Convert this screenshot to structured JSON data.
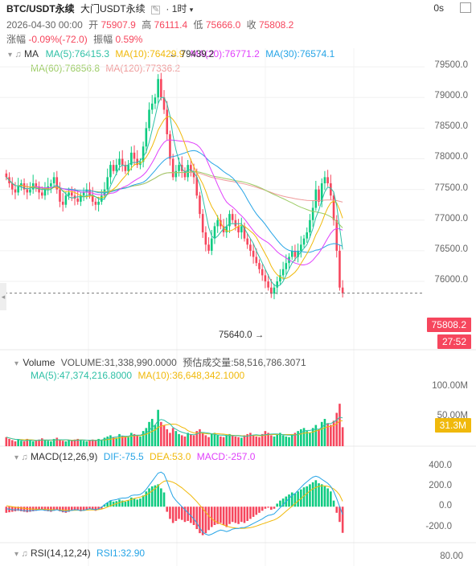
{
  "header": {
    "symbol": "BTC/USDT永续",
    "exchange": "大门USDT永续",
    "settings_icon": "edit-icon",
    "interval": "1时",
    "timer": "0s",
    "date": "2026-04-30 00:00",
    "open_label": "开",
    "open": "75907.9",
    "high_label": "高",
    "high": "76111.4",
    "low_label": "低",
    "low": "75666.0",
    "close_label": "收",
    "close": "75808.2",
    "change_label": "涨幅",
    "change": "-0.09%(-72.0)",
    "amp_label": "振幅",
    "amp": "0.59%"
  },
  "ma_legend": {
    "name": "MA",
    "ma5": "MA(5):76415.3",
    "ma10": "MA(10):76429.9",
    "ma20": "MA(20):76771.2",
    "ma30": "MA(30):76574.1",
    "ma60": "MA(60):76856.8",
    "ma120": "MA(120):77336.2"
  },
  "annotations": {
    "high_mark": "← 79439.2",
    "low_mark": "75640.0 →"
  },
  "price_tags": {
    "last": "75808.2",
    "countdown": "27:52"
  },
  "volume_legend": {
    "name": "Volume",
    "volume": "VOLUME:31,338,990.0000",
    "est": "预估成交量:58,516,786.3071",
    "ma5": "MA(5):47,374,216.8000",
    "ma10": "MA(10):36,648,342.1000",
    "tag": "31.3M"
  },
  "macd_legend": {
    "name": "MACD(12,26,9)",
    "dif": "DIF:-75.5",
    "dea": "DEA:53.0",
    "macd": "MACD:-257.0"
  },
  "rsi_legend": {
    "name": "RSI(14,12,24)",
    "rsi1": "RSI1:32.90"
  },
  "colors": {
    "up": "#0ecb81",
    "down": "#f6465d",
    "ma5": "#2fc0a6",
    "ma10": "#f0b90b",
    "ma20": "#e040fb",
    "ma30": "#26a4e6",
    "ma60": "#9ccc65",
    "ma120": "#ef9a9a"
  },
  "chart_data": {
    "type": "candlestick",
    "price_axis": {
      "ticks": [
        79500,
        79000,
        78500,
        78000,
        77500,
        77000,
        76500,
        76000
      ],
      "labels": [
        "79500.0",
        "79000.0",
        "78500.0",
        "78000.0",
        "77500.0",
        "77000.0",
        "76500.0",
        "76000.0"
      ],
      "range": [
        75450,
        79750
      ]
    },
    "volume_axis": {
      "ticks": [
        100,
        50
      ],
      "labels": [
        "100.00M",
        "50.00M"
      ],
      "range": [
        0,
        110
      ]
    },
    "macd_axis": {
      "ticks": [
        400,
        200,
        0,
        -200
      ],
      "labels": [
        "400.0",
        "200.0",
        "0.0",
        "-200.0"
      ],
      "range": [
        -330,
        460
      ]
    },
    "rsi_axis": {
      "ticks": [
        80
      ],
      "labels": [
        "80.00"
      ]
    },
    "closes": [
      77700,
      77600,
      77500,
      77450,
      77550,
      77600,
      77500,
      77450,
      77500,
      77600,
      77550,
      77450,
      77400,
      77500,
      77550,
      77600,
      77700,
      77500,
      77300,
      77250,
      77400,
      77450,
      77400,
      77350,
      77300,
      77400,
      77450,
      77500,
      77400,
      77300,
      77250,
      77300,
      77400,
      77500,
      77700,
      77900,
      77800,
      77900,
      78000,
      77900,
      77800,
      77900,
      78100,
      78000,
      77900,
      77950,
      78200,
      78500,
      78800,
      78900,
      79000,
      79300,
      79000,
      78800,
      78400,
      78000,
      77700,
      77800,
      77900,
      77800,
      77700,
      77900,
      77800,
      77700,
      77400,
      77100,
      76800,
      76600,
      76500,
      76700,
      76900,
      77000,
      76900,
      76800,
      76900,
      77100,
      77000,
      76900,
      76800,
      76900,
      76700,
      76600,
      76500,
      76400,
      76300,
      76200,
      76100,
      76000,
      75900,
      75800,
      75900,
      76000,
      76100,
      76200,
      76300,
      76400,
      76500,
      76400,
      76500,
      76600,
      76700,
      76800,
      77000,
      77200,
      77500,
      77300,
      77600,
      77700,
      77600,
      77400,
      77000,
      76500,
      75900,
      75808.2
    ],
    "volumes": [
      15,
      12,
      10,
      8,
      11,
      9,
      8,
      12,
      10,
      8,
      9,
      11,
      13,
      10,
      9,
      8,
      12,
      14,
      10,
      9,
      8,
      10,
      9,
      11,
      12,
      10,
      9,
      8,
      10,
      11,
      9,
      12,
      10,
      14,
      16,
      18,
      15,
      14,
      20,
      17,
      16,
      15,
      22,
      20,
      18,
      16,
      25,
      30,
      40,
      45,
      35,
      60,
      40,
      35,
      28,
      22,
      30,
      25,
      20,
      18,
      16,
      22,
      20,
      18,
      25,
      28,
      22,
      18,
      15,
      20,
      22,
      18,
      16,
      15,
      18,
      20,
      18,
      16,
      15,
      14,
      18,
      20,
      22,
      18,
      16,
      15,
      20,
      25,
      22,
      18,
      16,
      20,
      22,
      18,
      16,
      15,
      20,
      22,
      25,
      28,
      30,
      25,
      22,
      30,
      35,
      28,
      40,
      45,
      38,
      35,
      42,
      55,
      70,
      31.3
    ],
    "macd_hist": [
      -60,
      -55,
      -50,
      -45,
      -40,
      -45,
      -50,
      -55,
      -50,
      -45,
      -40,
      -35,
      -30,
      -40,
      -45,
      -50,
      -40,
      -30,
      -45,
      -55,
      -60,
      -50,
      -40,
      -30,
      -35,
      -45,
      -40,
      -30,
      -20,
      -30,
      -40,
      -30,
      -20,
      20,
      40,
      60,
      50,
      55,
      70,
      60,
      50,
      60,
      90,
      80,
      70,
      80,
      110,
      150,
      180,
      200,
      210,
      220,
      180,
      140,
      -50,
      -120,
      -160,
      -140,
      -120,
      -130,
      -150,
      -140,
      -160,
      -180,
      -220,
      -260,
      -280,
      -260,
      -230,
      -200,
      -180,
      -170,
      -160,
      -180,
      -200,
      -170,
      -150,
      -160,
      -170,
      -150,
      -160,
      -140,
      -120,
      -100,
      -80,
      -60,
      -40,
      -20,
      -10,
      -30,
      -20,
      30,
      60,
      80,
      100,
      120,
      140,
      130,
      150,
      170,
      190,
      200,
      220,
      240,
      260,
      230,
      220,
      200,
      180,
      150,
      60,
      -60,
      -150,
      -257
    ],
    "macd_dif": [
      -20,
      -25,
      -30,
      -32,
      -30,
      -35,
      -40,
      -42,
      -40,
      -38,
      -35,
      -32,
      -30,
      -35,
      -38,
      -40,
      -35,
      -30,
      -38,
      -45,
      -48,
      -42,
      -35,
      -30,
      -32,
      -38,
      -35,
      -28,
      -20,
      -25,
      -30,
      -20,
      -5,
      20,
      40,
      60,
      65,
      70,
      80,
      85,
      85,
      90,
      110,
      115,
      115,
      120,
      140,
      170,
      210,
      250,
      290,
      330,
      340,
      320,
      250,
      170,
      100,
      60,
      30,
      0,
      -30,
      -60,
      -90,
      -120,
      -160,
      -210,
      -250,
      -270,
      -280,
      -270,
      -255,
      -240,
      -230,
      -235,
      -245,
      -235,
      -220,
      -215,
      -215,
      -205,
      -205,
      -195,
      -180,
      -165,
      -150,
      -135,
      -120,
      -100,
      -85,
      -80,
      -70,
      -40,
      -10,
      20,
      50,
      80,
      110,
      130,
      160,
      190,
      220,
      245,
      270,
      290,
      300,
      290,
      270,
      250,
      230,
      200,
      150,
      80,
      0,
      -75.5
    ],
    "macd_dea": [
      10,
      5,
      0,
      -5,
      -8,
      -12,
      -16,
      -20,
      -22,
      -24,
      -25,
      -26,
      -26,
      -27,
      -28,
      -30,
      -30,
      -30,
      -31,
      -33,
      -35,
      -36,
      -36,
      -35,
      -34,
      -35,
      -35,
      -34,
      -32,
      -31,
      -31,
      -29,
      -24,
      -15,
      -4,
      9,
      20,
      30,
      40,
      49,
      56,
      63,
      72,
      81,
      88,
      94,
      103,
      116,
      133,
      154,
      178,
      205,
      230,
      250,
      255,
      250,
      240,
      225,
      205,
      185,
      160,
      135,
      110,
      80,
      50,
      15,
      -20,
      -55,
      -90,
      -120,
      -140,
      -155,
      -170,
      -180,
      -190,
      -200,
      -205,
      -210,
      -212,
      -213,
      -212,
      -210,
      -205,
      -200,
      -190,
      -180,
      -170,
      -160,
      -150,
      -140,
      -130,
      -115,
      -95,
      -70,
      -45,
      -20,
      5,
      30,
      55,
      80,
      105,
      130,
      155,
      175,
      190,
      200,
      205,
      205,
      200,
      190,
      175,
      150,
      115,
      53
    ]
  }
}
